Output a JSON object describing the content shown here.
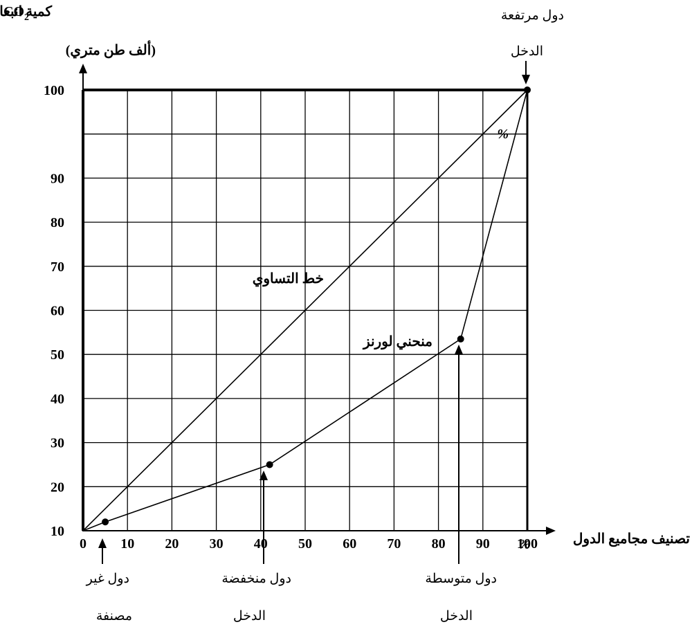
{
  "chart_data": {
    "type": "line",
    "y_axis_title": {
      "line1_text": "كمية انبعاث غاز",
      "line1_formula": "CO",
      "line1_subscript": "2",
      "line2": "(ألف طن متري)"
    },
    "x_axis_title": "تصنيف مجاميع الدول",
    "x_unit": "%",
    "y_unit": "%",
    "x_ticks": [
      "0",
      "10",
      "20",
      "30",
      "40",
      "50",
      "60",
      "70",
      "80",
      "90",
      "100"
    ],
    "y_ticks": [
      "10",
      "20",
      "30",
      "40",
      "50",
      "60",
      "70",
      "80",
      "90",
      "100"
    ],
    "grid": true,
    "series": [
      {
        "name": "خط التساوي",
        "x": [
          0,
          100
        ],
        "y": [
          0,
          100
        ],
        "markers": false
      },
      {
        "name": "منحني لورنز",
        "x": [
          0,
          5,
          42,
          85,
          100
        ],
        "y": [
          0,
          2,
          15,
          43.5,
          100
        ],
        "markers": [
          false,
          true,
          true,
          true,
          true
        ]
      }
    ],
    "annotations": {
      "high_income": {
        "line1": "دول مرتفعة",
        "line2": "الدخل",
        "x": 100,
        "y": 100
      },
      "non_classified": {
        "line1": "دول غير",
        "line2": "مصنفة",
        "x": 5,
        "y": 2
      },
      "low_income": {
        "line1": "دول منخفضة",
        "line2": "الدخل",
        "x": 42,
        "y": 15
      },
      "middle_income": {
        "line1": "دول متوسطة",
        "line2": "الدخل",
        "x": 85,
        "y": 43.5
      }
    }
  }
}
